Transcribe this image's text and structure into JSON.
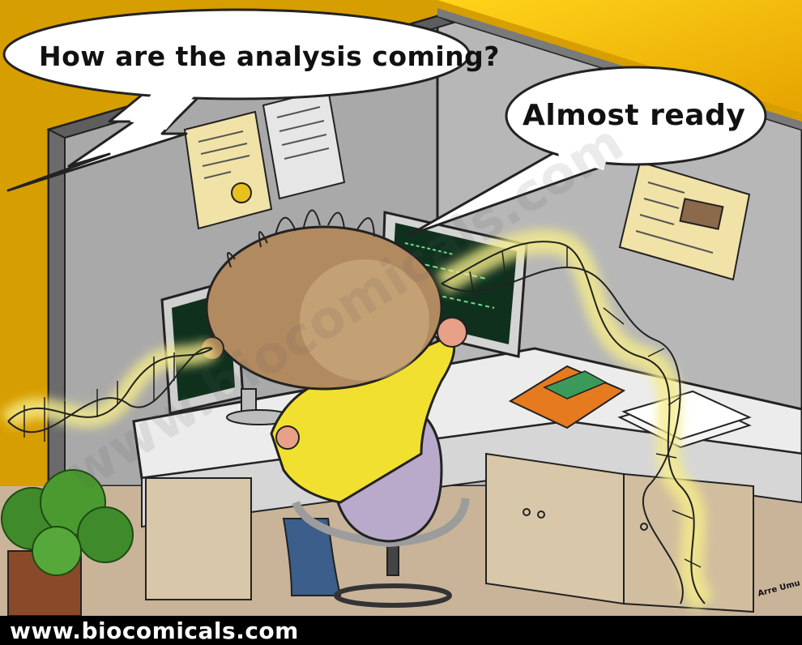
{
  "comic": {
    "question_bubble_text": "How are the analysis coming?",
    "answer_bubble_text": "Almost ready",
    "website": "www.biocomicals.com",
    "watermark": "www.biocomicals.com",
    "signature": "Arre Umu"
  },
  "colors": {
    "wall_yellow": "#E3A800",
    "cubicle_gray": "#A8A8A8",
    "desk_white": "#EAEAEA",
    "head_tan": "#B28A60",
    "shirt_yellow": "#F2E030",
    "chair_lavender": "#B9AACC",
    "dna_glow": "#F5EC8A",
    "screen_green": "#10301E"
  }
}
